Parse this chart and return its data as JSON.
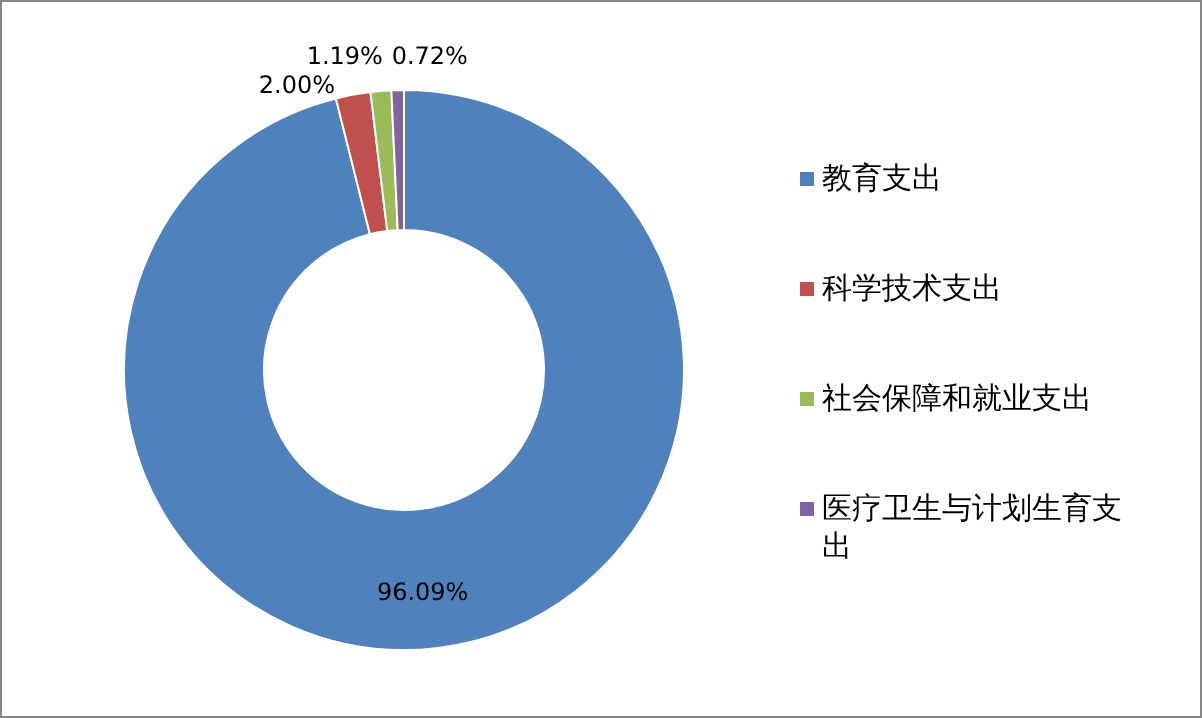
{
  "chart_data": {
    "type": "donut",
    "categories": [
      "教育支出",
      "科学技术支出",
      "社会保障和就业支出",
      "医疗卫生与计划生育支出"
    ],
    "values": [
      96.09,
      2.0,
      1.19,
      0.72
    ],
    "colors": [
      "#4f81bd",
      "#c0504d",
      "#9bbb59",
      "#8064a2"
    ],
    "value_labels": [
      "96.09%",
      "2.00%",
      "1.19%",
      "0.72%"
    ],
    "legend": "right"
  }
}
